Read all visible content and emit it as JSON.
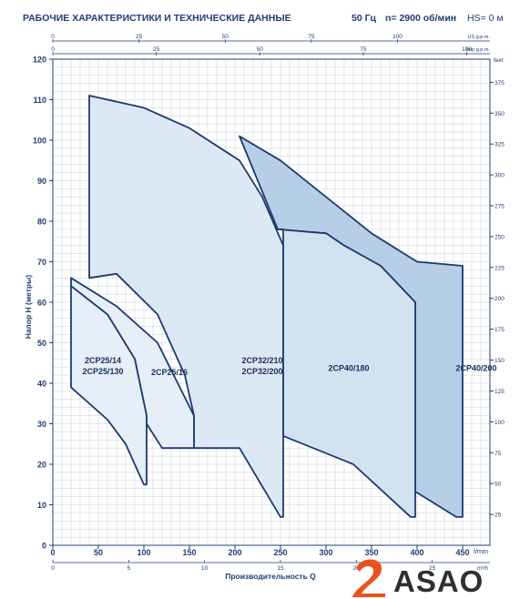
{
  "header": {
    "title": "РАБОЧИЕ ХАРАКТЕРИСТИКИ И ТЕХНИЧЕСКИЕ ДАННЫЕ",
    "frequency": "50 Гц",
    "speed": "n= 2900 об/мин",
    "hs": "HS= 0 м"
  },
  "logo": {
    "text": "ASAO"
  },
  "chart_data": {
    "type": "area",
    "ylabel": "Напор H (метры)",
    "xlabel": "Производительность Q",
    "grid": true,
    "axes": {
      "q_lmin": {
        "range": [
          0,
          480
        ],
        "ticks": [
          0,
          50,
          100,
          150,
          200,
          250,
          300,
          350,
          400,
          450
        ],
        "unit": "l/min"
      },
      "q_m3h": {
        "ticks": [
          0,
          5,
          10,
          15,
          20,
          25
        ],
        "unit": "m³/h"
      },
      "q_usgpm": {
        "ticks": [
          0,
          25,
          50,
          75,
          100
        ],
        "unit": "US g.p.m."
      },
      "q_impgpm": {
        "ticks": [
          0,
          25,
          50,
          75,
          100
        ],
        "unit": "Imp g.p.m."
      },
      "h_m": {
        "range": [
          0,
          120
        ],
        "ticks": [
          0,
          10,
          20,
          30,
          40,
          50,
          60,
          70,
          80,
          90,
          100,
          110,
          120
        ]
      },
      "h_feet": {
        "ticks": [
          25,
          50,
          75,
          100,
          125,
          150,
          175,
          200,
          225,
          250,
          275,
          300,
          325,
          350,
          375
        ],
        "unit": "feet"
      }
    },
    "series": [
      {
        "name": "2CP40/200",
        "fill": "#b7cfe6",
        "points": [
          [
            205,
            101
          ],
          [
            250,
            95
          ],
          [
            300,
            86
          ],
          [
            350,
            77
          ],
          [
            400,
            70
          ],
          [
            450,
            69
          ],
          [
            450,
            7
          ],
          [
            443,
            7
          ],
          [
            400,
            13
          ],
          [
            398,
            13
          ],
          [
            398,
            60
          ],
          [
            360,
            69
          ],
          [
            320,
            74
          ],
          [
            300,
            77
          ],
          [
            247,
            78
          ]
        ]
      },
      {
        "name": "2CP40/180",
        "fill": "#d2e2f1",
        "points": [
          [
            247,
            78
          ],
          [
            300,
            77
          ],
          [
            320,
            74
          ],
          [
            360,
            69
          ],
          [
            398,
            60
          ],
          [
            398,
            7
          ],
          [
            393,
            7
          ],
          [
            330,
            20
          ],
          [
            253,
            27
          ],
          [
            253,
            78
          ]
        ]
      },
      {
        "name": "2CP32/210",
        "label_lines": [
          "2CP32/210",
          "2CP32/200"
        ],
        "fill": "#dce8f4",
        "points": [
          [
            40,
            111
          ],
          [
            100,
            108
          ],
          [
            150,
            103
          ],
          [
            205,
            95
          ],
          [
            230,
            86
          ],
          [
            253,
            74
          ],
          [
            253,
            7
          ],
          [
            250,
            7
          ],
          [
            205,
            24
          ],
          [
            155,
            24
          ],
          [
            155,
            32
          ],
          [
            145,
            42
          ],
          [
            115,
            57
          ],
          [
            70,
            67
          ],
          [
            40,
            66
          ]
        ]
      },
      {
        "name": "2CP25/16",
        "fill": "#e6eef7",
        "points": [
          [
            20,
            66
          ],
          [
            70,
            59
          ],
          [
            115,
            50
          ],
          [
            155,
            32
          ],
          [
            155,
            24
          ],
          [
            120,
            24
          ],
          [
            103,
            30
          ],
          [
            103,
            32
          ],
          [
            90,
            46
          ],
          [
            60,
            57
          ],
          [
            20,
            64
          ]
        ]
      },
      {
        "name": "2CP25/14",
        "label_lines": [
          "2CP25/14",
          "2CP25/130"
        ],
        "fill": "#e6eef7",
        "points": [
          [
            20,
            64
          ],
          [
            60,
            57
          ],
          [
            90,
            46
          ],
          [
            103,
            32
          ],
          [
            103,
            15
          ],
          [
            100,
            15
          ],
          [
            80,
            25
          ],
          [
            60,
            31
          ],
          [
            20,
            39
          ]
        ]
      }
    ]
  }
}
